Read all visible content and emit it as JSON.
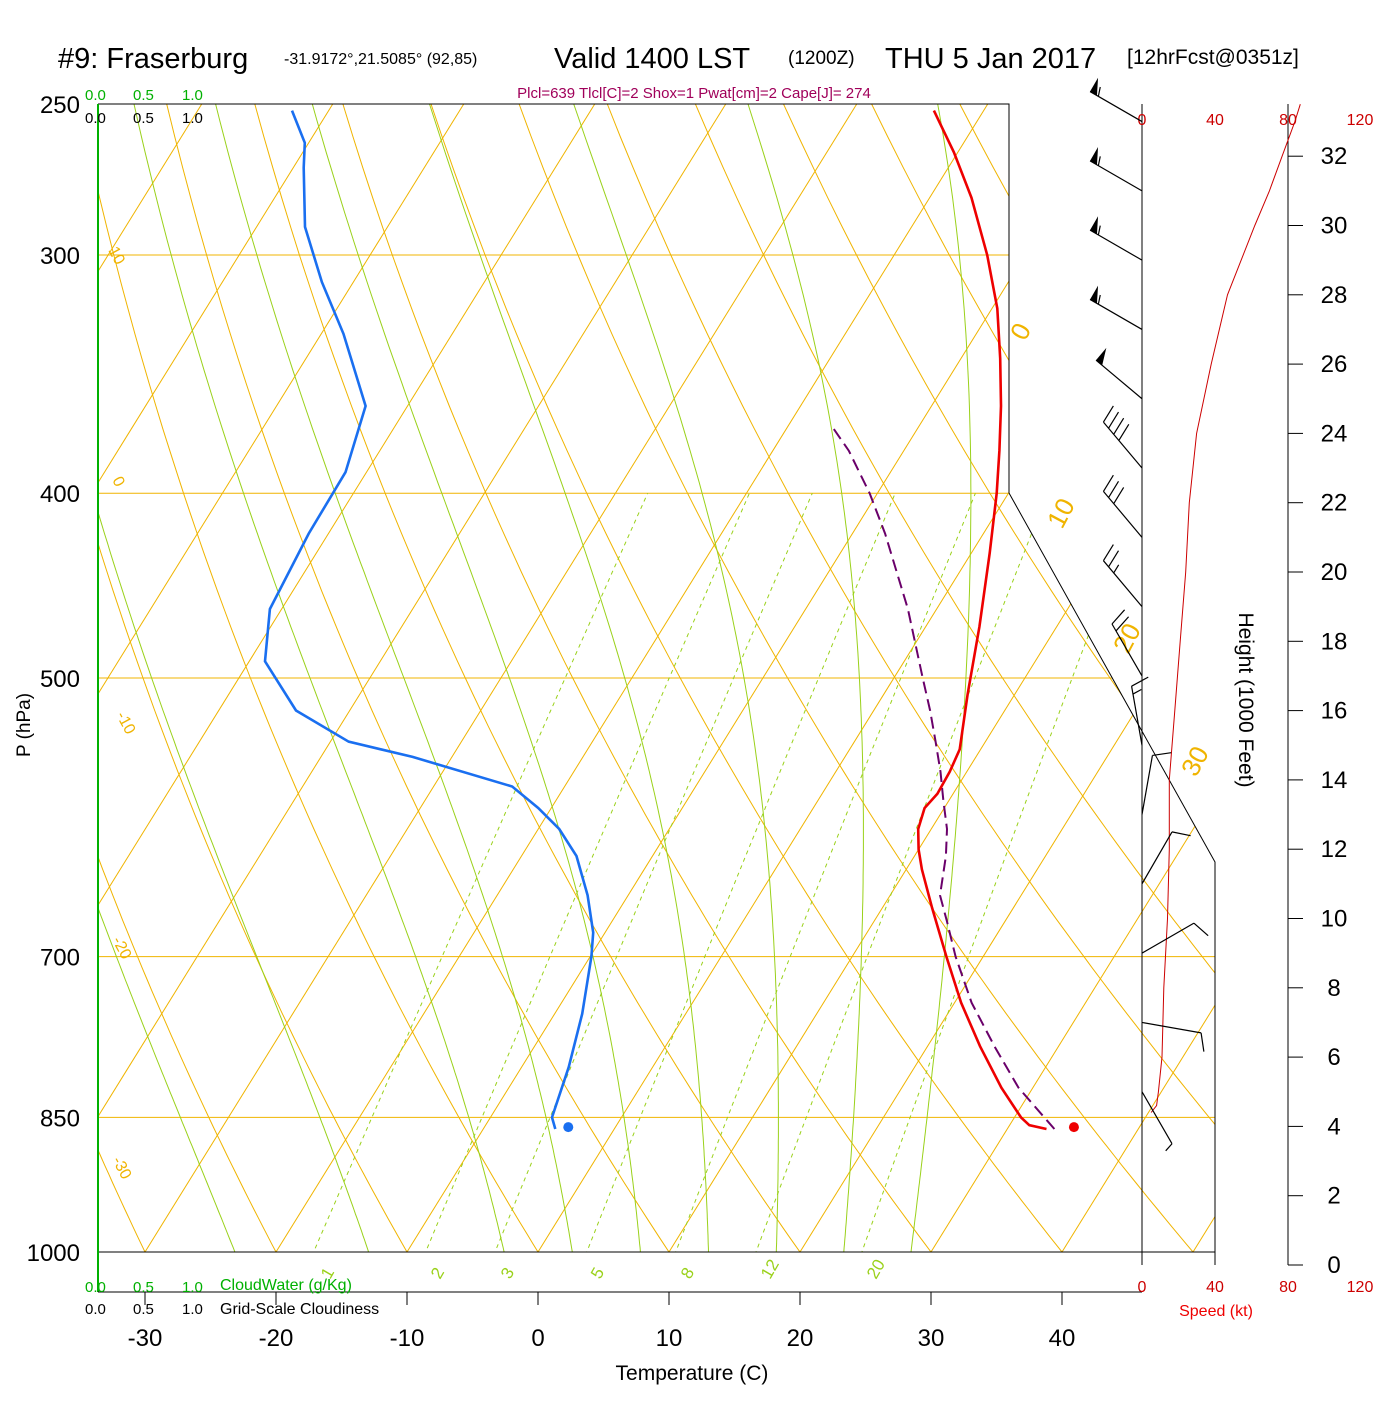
{
  "header": {
    "station": "#9: Fraserburg",
    "coords": "-31.9172°,21.5085° (92,85)",
    "valid": "Valid 1400 LST",
    "utc": "(1200Z)",
    "date": "THU 5 Jan 2017",
    "forecast": "[12hrFcst@0351z]",
    "indices": "Plcl=639 Tlcl[C]=2 Shox=1 Pwat[cm]=2 Cape[J]= 274"
  },
  "cloud_scale": {
    "green_ticks": [
      "0.0",
      "0.5",
      "1.0"
    ],
    "black_ticks": [
      "0.0",
      "0.5",
      "1.0"
    ],
    "cloudwater_label": "CloudWater (g/Kg)",
    "cloudiness_label": "Grid-Scale Cloudiness"
  },
  "speed_axis": {
    "label": "Speed (kt)",
    "ticks": [
      "0",
      "40",
      "80",
      "120"
    ]
  },
  "height_axis": {
    "label": "Height (1000 Feet)",
    "ticks": [
      "0",
      "2",
      "4",
      "6",
      "8",
      "10",
      "12",
      "14",
      "16",
      "18",
      "20",
      "22",
      "24",
      "26",
      "28",
      "30",
      "32"
    ]
  },
  "colors": {
    "isobar": "#f0b400",
    "isotherm": "#f0b400",
    "dry_adiabat": "#f0b400",
    "moist_adiabat": "#9ad11a",
    "mixing_ratio": "#9ad11a",
    "temperature": "#ee0000",
    "dewpoint": "#1a6ff0",
    "parcel": "#6a006a",
    "wind_speed": "#cc0000",
    "cloud_axis": "#00b000",
    "indices_text": "#a0005a"
  },
  "chart_data": {
    "type": "line",
    "title": "#9: Fraserburg",
    "xlabel": "Temperature (C)",
    "ylabel": "P (hPa)",
    "x_ticks": [
      -30,
      -20,
      -10,
      0,
      10,
      20,
      30,
      40
    ],
    "pressure_ticks": [
      250,
      300,
      400,
      500,
      700,
      850,
      1000
    ],
    "isotherm_labels": [
      "10",
      "0",
      "-10",
      "-20",
      "-30",
      "0",
      "10",
      "20",
      "30"
    ],
    "mixing_ratio_labels": [
      "1",
      "2",
      "3",
      "5",
      "8",
      "12",
      "20"
    ],
    "series": [
      {
        "name": "Temperature",
        "unit": "C",
        "pressure": [
          862,
          858,
          850,
          820,
          780,
          740,
          700,
          660,
          630,
          615,
          600,
          585,
          575,
          560,
          545,
          510,
          470,
          430,
          400,
          380,
          360,
          340,
          320,
          300,
          280,
          265,
          252
        ],
        "temperature": [
          33,
          31.5,
          30.5,
          27.6,
          24,
          20.5,
          17.2,
          13.8,
          11.2,
          10.0,
          9.0,
          8.5,
          8.8,
          8.7,
          8.4,
          6.4,
          4.1,
          1.4,
          -0.9,
          -2.7,
          -4.7,
          -7.0,
          -9.6,
          -12.9,
          -16.8,
          -20.3,
          -23.8
        ]
      },
      {
        "name": "Dewpoint",
        "unit": "C",
        "pressure": [
          862,
          850,
          800,
          750,
          700,
          680,
          650,
          620,
          600,
          585,
          570,
          550,
          540,
          520,
          490,
          460,
          420,
          390,
          360,
          330,
          310,
          290,
          270,
          262,
          252
        ],
        "temperature": [
          -4.5,
          -5.3,
          -6.4,
          -7.9,
          -9.9,
          -10.9,
          -13.1,
          -15.8,
          -18.4,
          -21.0,
          -24.0,
          -33.0,
          -38.6,
          -44.1,
          -48.8,
          -50.9,
          -51.5,
          -51.6,
          -53.2,
          -58.3,
          -62.4,
          -66.3,
          -69.2,
          -70.3,
          -72.8
        ]
      },
      {
        "name": "Parcel",
        "unit": "C",
        "pressure": [
          862,
          820,
          780,
          740,
          700,
          670,
          650,
          620,
          600,
          580,
          560,
          540,
          520,
          500,
          460,
          420,
          400,
          380,
          370
        ],
        "temperature": [
          33.6,
          28.9,
          25.1,
          21.3,
          17.9,
          15.5,
          13.8,
          12.4,
          11.2,
          9.6,
          8.0,
          6.2,
          4.3,
          2.2,
          -2.2,
          -7.5,
          -10.6,
          -14.2,
          -16.4
        ]
      }
    ],
    "surface_points": [
      {
        "name": "Surface temperature",
        "pressure": 860,
        "temperature": 35
      },
      {
        "name": "Surface dewpoint",
        "pressure": 860,
        "temperature": -3.6
      }
    ],
    "wind_speed_profile": {
      "unit": "kt",
      "height_kft": [
        4.4,
        4.6,
        5,
        6,
        8,
        10,
        12,
        14,
        16,
        18,
        20,
        22,
        24,
        26,
        28,
        30,
        31,
        32,
        33,
        33.5
      ],
      "speed": [
        5,
        8,
        9,
        11,
        12,
        14,
        15,
        15,
        18,
        21,
        24,
        26,
        30,
        38,
        47,
        62,
        70,
        77,
        84,
        87
      ]
    },
    "wind_barbs": {
      "height_kft": [
        33,
        31,
        29,
        27,
        25,
        23,
        21,
        19,
        17,
        15,
        13,
        11,
        9,
        7,
        5
      ],
      "direction_deg": [
        300,
        300,
        300,
        300,
        310,
        320,
        320,
        320,
        330,
        350,
        10,
        30,
        60,
        100,
        150
      ],
      "speed_kt": [
        55,
        55,
        55,
        55,
        50,
        40,
        30,
        25,
        20,
        15,
        10,
        10,
        10,
        10,
        5
      ]
    }
  }
}
